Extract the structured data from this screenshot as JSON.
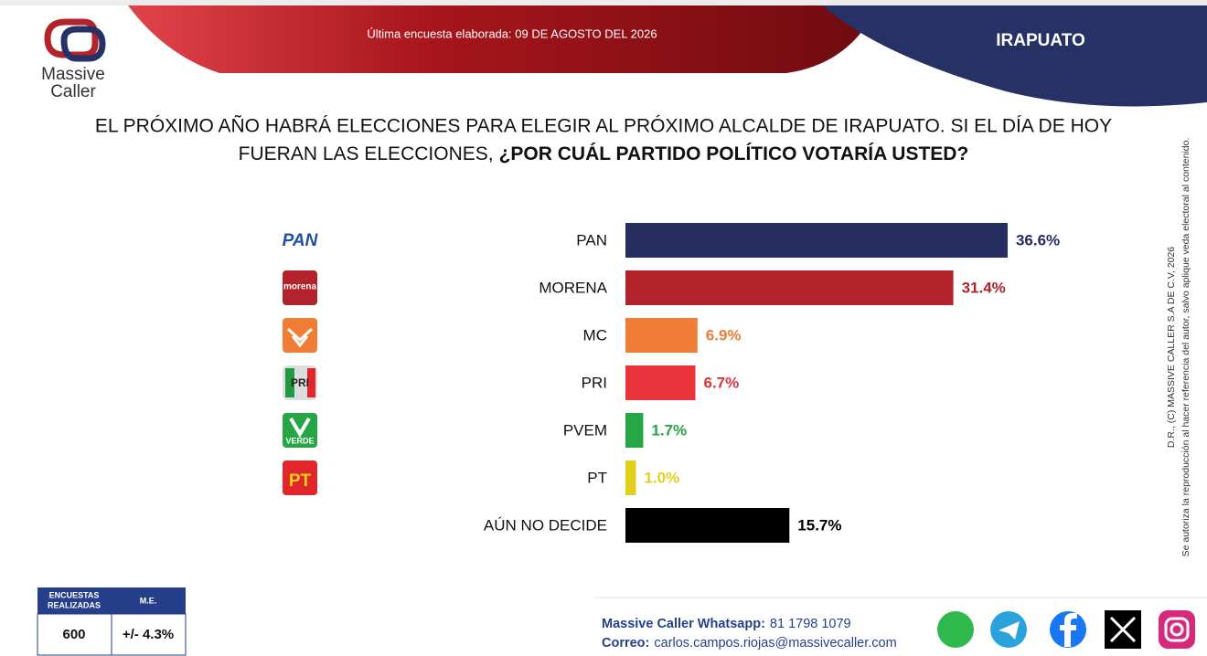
{
  "header": {
    "survey_date": "Última encuesta elaborada: 09 DE AGOSTO DEL 2026",
    "region": "IRAPUATO"
  },
  "brand": {
    "line1": "Massive",
    "line2": "Caller"
  },
  "chart_data": {
    "type": "bar",
    "orientation": "horizontal",
    "title": "EL PRÓXIMO AÑO HABRÁ ELECCIONES PARA ELEGIR AL PRÓXIMO ALCALDE DE IRAPUATO. SI EL DÍA DE HOY",
    "title_line2": "FUERAN LAS ELECCIONES,",
    "title_emphasis": "¿POR CUÁL PARTIDO POLÍTICO VOTARÍA USTED?",
    "categories": [
      "PAN",
      "MORENA",
      "MC",
      "PRI",
      "PVEM",
      "PT",
      "AÚN NO DECIDE"
    ],
    "values": [
      36.6,
      31.4,
      6.9,
      6.7,
      1.7,
      1.0,
      15.7
    ],
    "value_labels": [
      "36.6%",
      "31.4%",
      "6.9%",
      "6.7%",
      "1.7%",
      "1.0%",
      "15.7%"
    ],
    "colors": [
      "#262e5f",
      "#b3232b",
      "#ef7d35",
      "#e8343a",
      "#26a644",
      "#e2cf1c",
      "#000000"
    ],
    "label_colors": [
      "#262e5f",
      "#b3232b",
      "#ef7d35",
      "#d8353a",
      "#26a644",
      "#e2cf1c",
      "#000000"
    ]
  },
  "logos": {
    "pan": "PAN",
    "morena": "morena",
    "pri": "PRI",
    "pvem": "VERDE",
    "pt": "PT"
  },
  "credits": {
    "rights": "D.R., (C) MASSIVE CALLER S.A DE C.V, 2026",
    "authorization": "Se autoriza la reproducción al hacer referencia del autor, salvo aplique veda electoral al contenido."
  },
  "sample_table": {
    "headers": [
      [
        "ENCUESTAS",
        "REALIZADAS"
      ],
      [
        "M.E."
      ]
    ],
    "values": [
      600,
      "+/- 4.3%"
    ]
  },
  "contact": {
    "whatsapp_label": "Massive Caller Whatsapp:",
    "whatsapp": "81 1798 1079",
    "email_label": "Correo:",
    "email": "carlos.campos.riojas@massivecaller.com"
  }
}
